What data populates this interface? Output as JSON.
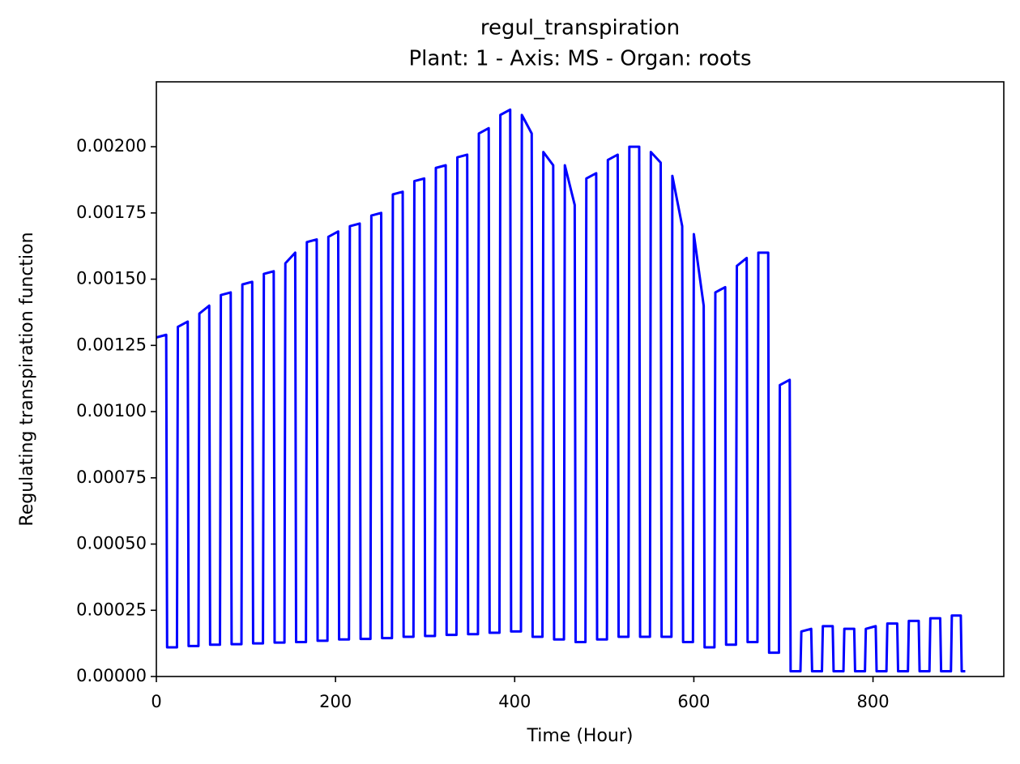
{
  "chart_data": {
    "type": "line",
    "title": "regul_transpiration",
    "subtitle": "Plant: 1 - Axis: MS - Organ: roots",
    "x_label": "Time (Hour)",
    "y_label": "Regulating transpiration function",
    "color": "#0000ff",
    "xlim": [
      0,
      946
    ],
    "ylim": [
      0,
      0.002245
    ],
    "xticks": [
      0,
      200,
      400,
      600,
      800
    ],
    "yticks": [
      {
        "value": 0,
        "label": "0.00000"
      },
      {
        "value": 0.00025,
        "label": "0.00025"
      },
      {
        "value": 0.0005,
        "label": "0.00050"
      },
      {
        "value": 0.00075,
        "label": "0.00075"
      },
      {
        "value": 0.001,
        "label": "0.00100"
      },
      {
        "value": 0.00125,
        "label": "0.00125"
      },
      {
        "value": 0.0015,
        "label": "0.00150"
      },
      {
        "value": 0.00175,
        "label": "0.00175"
      },
      {
        "value": 0.002,
        "label": "0.00200"
      }
    ],
    "x": [
      0,
      11,
      12,
      23,
      24,
      35,
      36,
      47,
      48,
      59,
      60,
      71,
      72,
      83,
      84,
      95,
      96,
      107,
      108,
      119,
      120,
      131,
      132,
      143,
      144,
      155,
      156,
      167,
      168,
      179,
      180,
      191,
      192,
      203,
      204,
      215,
      216,
      227,
      228,
      239,
      240,
      251,
      252,
      263,
      264,
      275,
      276,
      287,
      288,
      299,
      300,
      311,
      312,
      323,
      324,
      335,
      336,
      347,
      348,
      359,
      360,
      371,
      372,
      383,
      384,
      395,
      396,
      407,
      408,
      419,
      420,
      431,
      432,
      443,
      444,
      455,
      456,
      467,
      468,
      479,
      480,
      491,
      492,
      503,
      504,
      515,
      516,
      527,
      528,
      539,
      540,
      551,
      552,
      563,
      564,
      575,
      576,
      587,
      588,
      599,
      600,
      611,
      612,
      623,
      624,
      635,
      636,
      647,
      648,
      659,
      660,
      671,
      672,
      683,
      684,
      695,
      696,
      707,
      708,
      719,
      720,
      731,
      732,
      743,
      744,
      755,
      756,
      767,
      768,
      779,
      780,
      791,
      792,
      803,
      804,
      815,
      816,
      827,
      828,
      839,
      840,
      851,
      852,
      863,
      864,
      875,
      876,
      887,
      888,
      898,
      899,
      903
    ],
    "values": [
      0.00128,
      0.00129,
      0.00011,
      0.00011,
      0.00132,
      0.00134,
      0.000115,
      0.000115,
      0.00137,
      0.0014,
      0.00012,
      0.00012,
      0.00144,
      0.00145,
      0.000122,
      0.000122,
      0.00148,
      0.00149,
      0.000125,
      0.000125,
      0.00152,
      0.00153,
      0.000128,
      0.000128,
      0.00156,
      0.0016,
      0.00013,
      0.00013,
      0.00164,
      0.00165,
      0.000135,
      0.000135,
      0.00166,
      0.00168,
      0.00014,
      0.00014,
      0.0017,
      0.00171,
      0.000142,
      0.000142,
      0.00174,
      0.00175,
      0.000145,
      0.000145,
      0.00182,
      0.00183,
      0.00015,
      0.00015,
      0.00187,
      0.00188,
      0.000153,
      0.000153,
      0.00192,
      0.00193,
      0.000157,
      0.000157,
      0.00196,
      0.00197,
      0.00016,
      0.00016,
      0.00205,
      0.00207,
      0.000165,
      0.000165,
      0.00212,
      0.00214,
      0.00017,
      0.00017,
      0.00212,
      0.00205,
      0.00015,
      0.00015,
      0.00198,
      0.00193,
      0.00014,
      0.00014,
      0.00193,
      0.00178,
      0.00013,
      0.00013,
      0.00188,
      0.0019,
      0.00014,
      0.00014,
      0.00195,
      0.00197,
      0.00015,
      0.00015,
      0.002,
      0.002,
      0.00015,
      0.00015,
      0.00198,
      0.00194,
      0.00015,
      0.00015,
      0.00189,
      0.0017,
      0.00013,
      0.00013,
      0.00167,
      0.0014,
      0.00011,
      0.00011,
      0.00145,
      0.00147,
      0.00012,
      0.00012,
      0.00155,
      0.00158,
      0.00013,
      0.00013,
      0.0016,
      0.0016,
      9e-05,
      9e-05,
      0.0011,
      0.00112,
      2e-05,
      2e-05,
      0.00017,
      0.00018,
      2e-05,
      2e-05,
      0.00019,
      0.00019,
      2e-05,
      2e-05,
      0.00018,
      0.00018,
      2e-05,
      2e-05,
      0.00018,
      0.00019,
      2e-05,
      2e-05,
      0.0002,
      0.0002,
      2e-05,
      2e-05,
      0.00021,
      0.00021,
      2e-05,
      2e-05,
      0.00022,
      0.00022,
      2e-05,
      2e-05,
      0.00023,
      0.00023,
      2e-05,
      2e-05
    ]
  }
}
